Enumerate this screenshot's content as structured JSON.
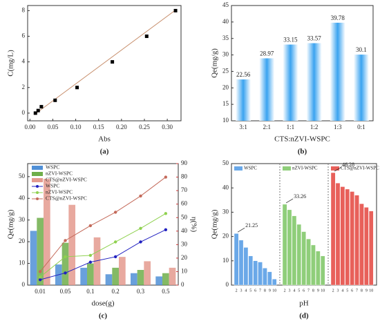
{
  "chart_data": [
    {
      "type": "scatter",
      "panel_label": "(a)",
      "xlabel": "Abs",
      "ylabel": "C(mg/L)",
      "x": [
        0.012,
        0.018,
        0.025,
        0.055,
        0.103,
        0.18,
        0.255,
        0.318
      ],
      "values": [
        0,
        0.2,
        0.5,
        1,
        2,
        4,
        6,
        8
      ],
      "color": "#000000",
      "fit": {
        "x": [
          0.01,
          0.32
        ],
        "y": [
          -0.1,
          8.1
        ],
        "color": "#c8906e"
      },
      "xlim": [
        -0.005,
        0.33
      ],
      "xticks": [
        {
          "value": 0,
          "label": "0.00"
        },
        0.05,
        {
          "value": 0.1,
          "label": "0.10"
        },
        0.15,
        {
          "value": 0.2,
          "label": "0.20"
        },
        0.25,
        {
          "value": 0.3,
          "label": "0.30"
        }
      ],
      "ylim": [
        -0.6,
        8.4
      ],
      "yticks": [
        0,
        2,
        4,
        6,
        8
      ]
    },
    {
      "type": "bar",
      "panel_label": "(b)",
      "xlabel": "CTS:nZVI-WSPC",
      "ylabel": "Qe(mg/g)",
      "categories": [
        "3:1",
        "2:1",
        "1:1",
        "1:2",
        "1:3",
        "0:1"
      ],
      "values": [
        22.56,
        28.97,
        33.15,
        33.57,
        39.78,
        30.1
      ],
      "color": "#3aa3f0",
      "ylim": [
        10,
        45
      ],
      "yticks": [
        10,
        15,
        20,
        25,
        30,
        35,
        40,
        45
      ]
    },
    {
      "type": "combo",
      "panel_label": "(c)",
      "xlabel": "dose(g)",
      "ylabel": "Qe(mg/g)",
      "y2label": "η(%)",
      "categories": [
        "0.01",
        "0.05",
        "0.1",
        "0.2",
        "0.3",
        "0.5"
      ],
      "series": [
        {
          "name": "WSPC",
          "color": "#4f8fd6",
          "values": [
            25,
            9.5,
            8,
            5,
            5.5,
            4
          ]
        },
        {
          "name": "nZVI-WSPC",
          "color": "#6fae4a",
          "values": [
            31,
            19.5,
            10,
            8,
            7,
            5.5
          ]
        },
        {
          "name": "CTS@nZVI-WSPC",
          "color": "#e49a8e",
          "values": [
            49,
            37,
            22,
            13,
            11,
            8
          ]
        },
        {
          "name": "WSPC",
          "color": "#2020c0",
          "axis": "y2",
          "values": [
            4,
            9,
            17,
            21,
            32,
            41
          ]
        },
        {
          "name": "nZVI-WSPC",
          "color": "#8fd14f",
          "axis": "y2",
          "values": [
            6,
            21,
            22,
            32,
            42,
            53
          ]
        },
        {
          "name": "CTS@nZVI-WSPC",
          "color": "#c46a5a",
          "axis": "y2",
          "values": [
            10,
            33,
            44,
            54,
            66,
            80
          ]
        }
      ],
      "ylim": [
        0,
        56
      ],
      "yticks": [
        0,
        10,
        20,
        30,
        40,
        50
      ],
      "y2lim": [
        0,
        90
      ],
      "y2ticks": [
        0,
        10,
        20,
        30,
        40,
        50,
        60,
        70,
        80,
        90
      ]
    },
    {
      "type": "faceted",
      "panel_label": "(d)",
      "xlabel": "pH",
      "ylabel": "Qe(mg/g)",
      "categories": [
        "2",
        "3",
        "4",
        "5",
        "6",
        "7",
        "8",
        "9",
        "10"
      ],
      "series": [
        {
          "name": "WSPC",
          "color": "#6aa8e8",
          "values": [
            21.25,
            18.5,
            15.5,
            12,
            10,
            9.5,
            7,
            5.5,
            2.5
          ]
        },
        {
          "name": "nZVI-WSPC",
          "color": "#8fce7a",
          "values": [
            33.26,
            31,
            28.5,
            25,
            22,
            19,
            16.5,
            14,
            12
          ]
        },
        {
          "name": "CTS@nZVI-WSPC",
          "color": "#e8605a",
          "values": [
            46.28,
            42,
            40.5,
            39.5,
            38.5,
            37,
            33.5,
            32,
            30.5
          ]
        }
      ],
      "ylim": [
        0,
        50
      ],
      "yticks": [
        0,
        10,
        20,
        30,
        40,
        50
      ]
    }
  ]
}
